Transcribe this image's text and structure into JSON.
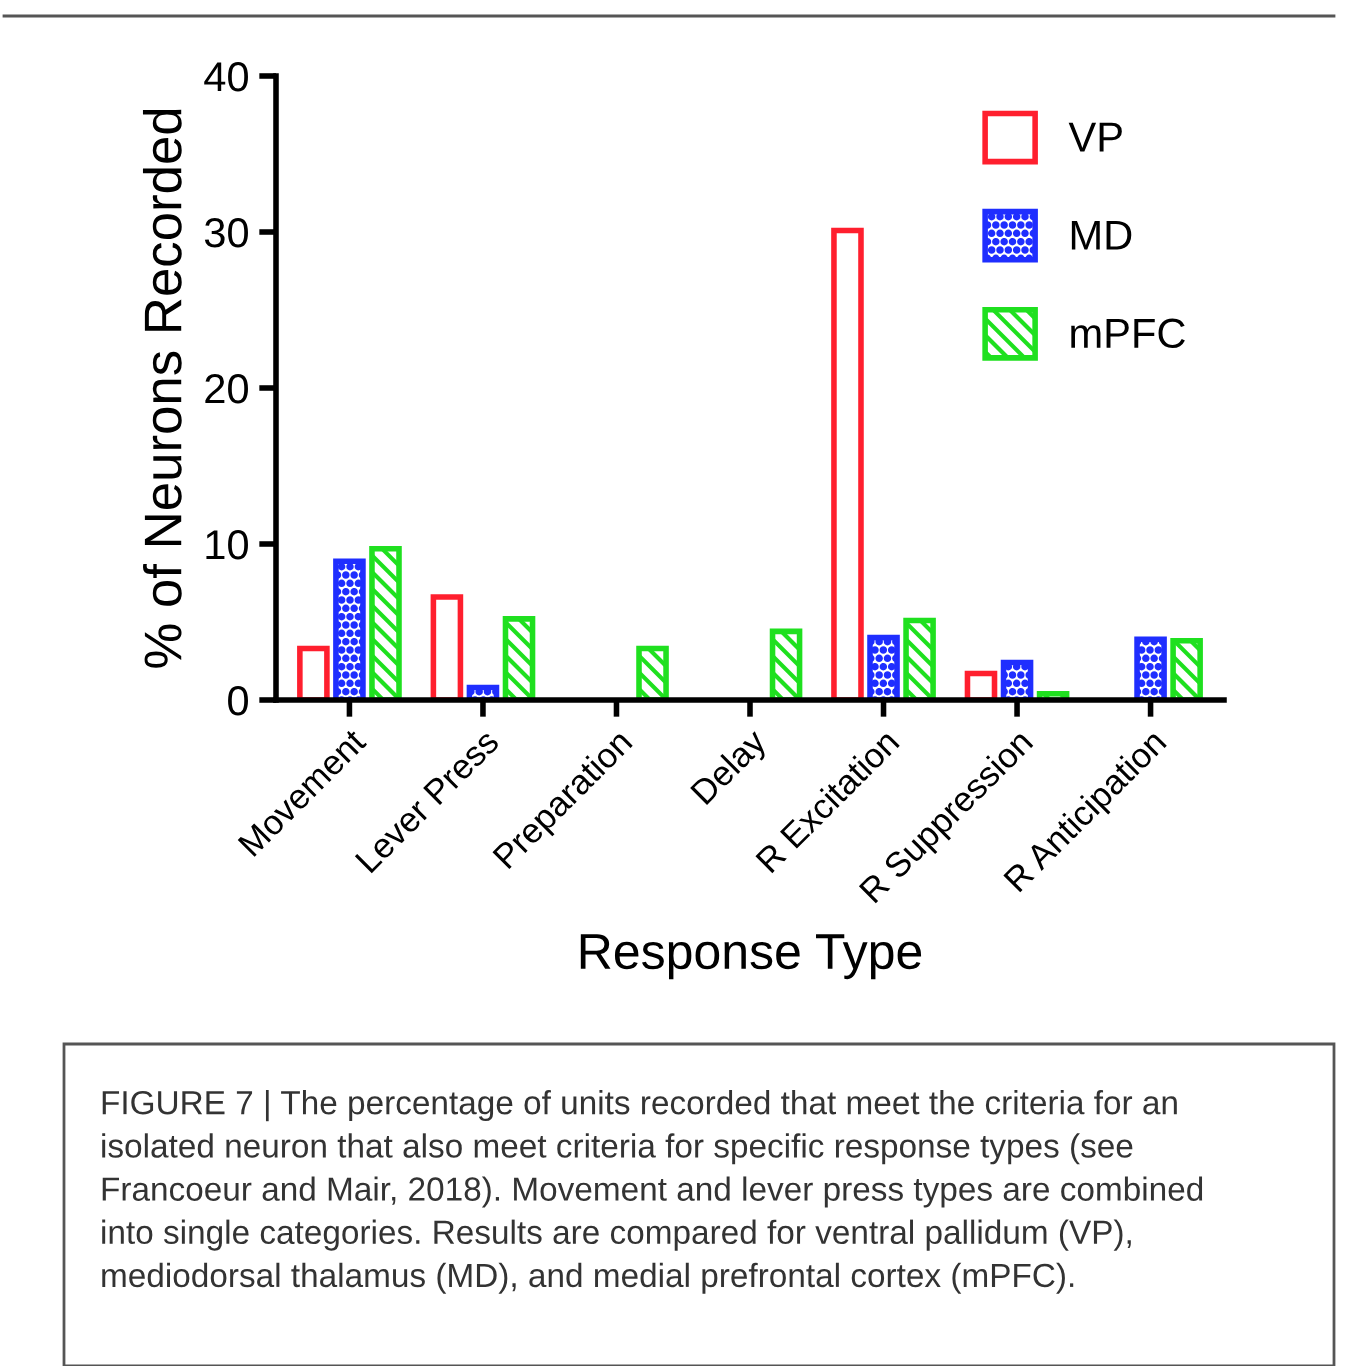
{
  "chart_data": {
    "type": "bar",
    "categories": [
      "Movement",
      "Lever Press",
      "Preparation",
      "Delay",
      "R Excitation",
      "R Suppression",
      "R Anticipation"
    ],
    "series": [
      {
        "name": "VP",
        "color": "#ff1f2e",
        "values": [
          3.3,
          6.6,
          null,
          null,
          30.1,
          1.7,
          null
        ]
      },
      {
        "name": "MD",
        "color": "#1f2eff",
        "values": [
          8.9,
          0.8,
          null,
          null,
          4.0,
          2.4,
          3.9
        ]
      },
      {
        "name": "mPFC",
        "color": "#1fe01f",
        "values": [
          9.7,
          5.2,
          3.3,
          4.4,
          5.1,
          0.4,
          3.8
        ]
      }
    ],
    "ylabel": "% of Neurons Recorded",
    "xlabel": "Response Type",
    "ylim": [
      0,
      40
    ],
    "yticks": [
      0,
      10,
      20,
      30,
      40
    ],
    "grid": false,
    "legend": "top right",
    "annotations": [
      "FIGURE 7 | The percentage of units recorded that meet the criteria for an isolated neuron that also meet criteria for specific response types (see Francoeur and Mair, 2018). Movement and lever press types are combined into single categories. Results are compared for ventral pallidum (VP), mediodorsal thalamus (MD), and medial prefrontal cortex (mPFC)."
    ]
  }
}
